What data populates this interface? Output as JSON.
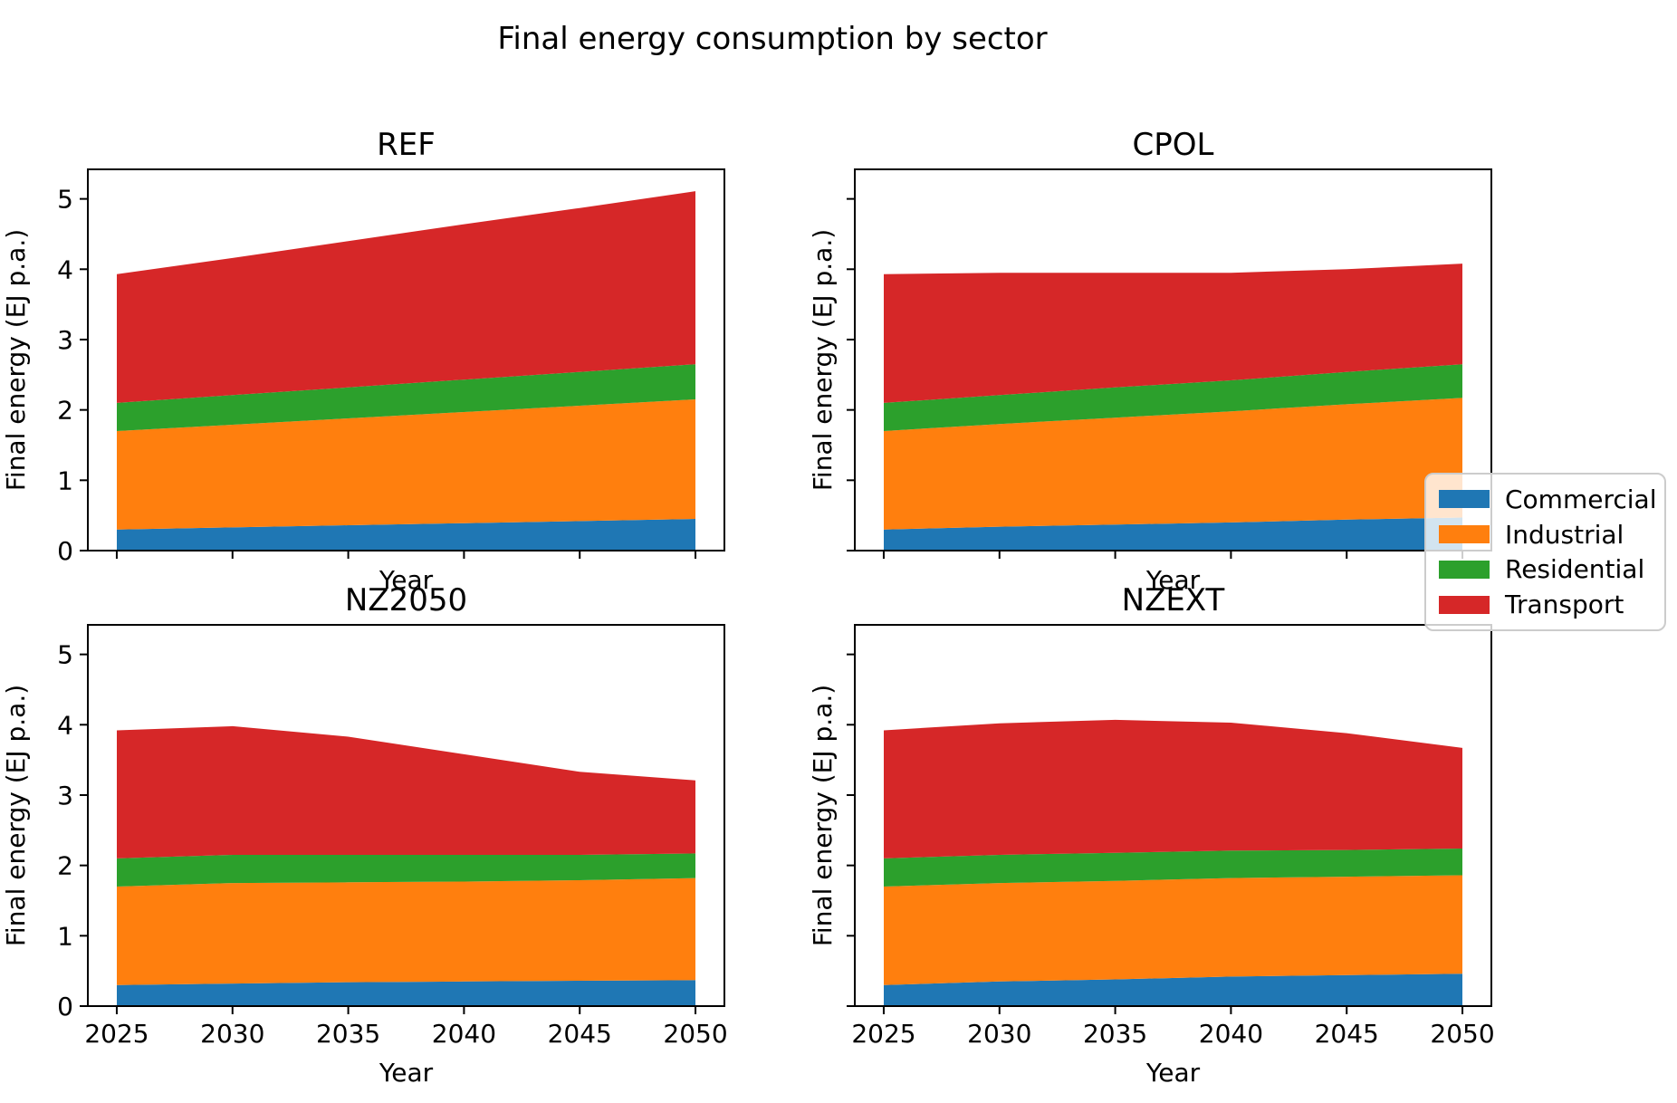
{
  "suptitle": "Final energy consumption by sector",
  "colors": {
    "commercial": "#1f77b4",
    "industrial": "#ff7f0e",
    "residential": "#2ca02c",
    "transport": "#d62728",
    "spine": "#000000",
    "legend_border": "#cccccc"
  },
  "axes": {
    "xlabel": "Year",
    "ylabel": "Final energy (EJ p.a.)",
    "xticks": [
      2025,
      2030,
      2035,
      2040,
      2045,
      2050
    ],
    "yticks": [
      0,
      1,
      2,
      3,
      4,
      5
    ],
    "xlim": [
      2023.75,
      2051.25
    ],
    "ylim": [
      0,
      5.42
    ],
    "grid": false
  },
  "legend": {
    "entries": [
      {
        "label": "Commercial",
        "color": "#1f77b4"
      },
      {
        "label": "Industrial",
        "color": "#ff7f0e"
      },
      {
        "label": "Residential",
        "color": "#2ca02c"
      },
      {
        "label": "Transport",
        "color": "#d62728"
      }
    ],
    "position": "center right"
  },
  "chart_data": [
    {
      "type": "area",
      "stacked": true,
      "title": "REF",
      "xlabel": "Year",
      "ylabel": "Final energy (EJ p.a.)",
      "x": [
        2025,
        2030,
        2035,
        2040,
        2045,
        2050
      ],
      "series": [
        {
          "name": "Commercial",
          "color": "#1f77b4",
          "values": [
            0.3,
            0.33,
            0.36,
            0.39,
            0.42,
            0.45
          ]
        },
        {
          "name": "Industrial",
          "color": "#ff7f0e",
          "values": [
            1.4,
            1.46,
            1.52,
            1.58,
            1.64,
            1.7
          ]
        },
        {
          "name": "Residential",
          "color": "#2ca02c",
          "values": [
            0.4,
            0.42,
            0.44,
            0.46,
            0.48,
            0.5
          ]
        },
        {
          "name": "Transport",
          "color": "#d62728",
          "values": [
            1.83,
            1.95,
            2.08,
            2.21,
            2.33,
            2.46
          ]
        }
      ]
    },
    {
      "type": "area",
      "stacked": true,
      "title": "CPOL",
      "xlabel": "Year",
      "ylabel": "Final energy (EJ p.a.)",
      "x": [
        2025,
        2030,
        2035,
        2040,
        2045,
        2050
      ],
      "series": [
        {
          "name": "Commercial",
          "color": "#1f77b4",
          "values": [
            0.3,
            0.34,
            0.37,
            0.4,
            0.44,
            0.47
          ]
        },
        {
          "name": "Industrial",
          "color": "#ff7f0e",
          "values": [
            1.4,
            1.46,
            1.52,
            1.58,
            1.64,
            1.7
          ]
        },
        {
          "name": "Residential",
          "color": "#2ca02c",
          "values": [
            0.4,
            0.41,
            0.43,
            0.44,
            0.46,
            0.48
          ]
        },
        {
          "name": "Transport",
          "color": "#d62728",
          "values": [
            1.83,
            1.74,
            1.63,
            1.53,
            1.46,
            1.43
          ]
        }
      ]
    },
    {
      "type": "area",
      "stacked": true,
      "title": "NZ2050",
      "xlabel": "Year",
      "ylabel": "Final energy (EJ p.a.)",
      "x": [
        2025,
        2030,
        2035,
        2040,
        2045,
        2050
      ],
      "series": [
        {
          "name": "Commercial",
          "color": "#1f77b4",
          "values": [
            0.3,
            0.32,
            0.34,
            0.35,
            0.36,
            0.37
          ]
        },
        {
          "name": "Industrial",
          "color": "#ff7f0e",
          "values": [
            1.4,
            1.43,
            1.42,
            1.42,
            1.43,
            1.45
          ]
        },
        {
          "name": "Residential",
          "color": "#2ca02c",
          "values": [
            0.4,
            0.4,
            0.39,
            0.38,
            0.36,
            0.35
          ]
        },
        {
          "name": "Transport",
          "color": "#d62728",
          "values": [
            1.82,
            1.83,
            1.68,
            1.43,
            1.18,
            1.04
          ]
        }
      ]
    },
    {
      "type": "area",
      "stacked": true,
      "title": "NZEXT",
      "xlabel": "Year",
      "ylabel": "Final energy (EJ p.a.)",
      "x": [
        2025,
        2030,
        2035,
        2040,
        2045,
        2050
      ],
      "series": [
        {
          "name": "Commercial",
          "color": "#1f77b4",
          "values": [
            0.3,
            0.35,
            0.38,
            0.42,
            0.44,
            0.46
          ]
        },
        {
          "name": "Industrial",
          "color": "#ff7f0e",
          "values": [
            1.4,
            1.4,
            1.4,
            1.4,
            1.4,
            1.4
          ]
        },
        {
          "name": "Residential",
          "color": "#2ca02c",
          "values": [
            0.4,
            0.4,
            0.4,
            0.39,
            0.38,
            0.38
          ]
        },
        {
          "name": "Transport",
          "color": "#d62728",
          "values": [
            1.82,
            1.87,
            1.89,
            1.82,
            1.66,
            1.43
          ]
        }
      ]
    }
  ]
}
